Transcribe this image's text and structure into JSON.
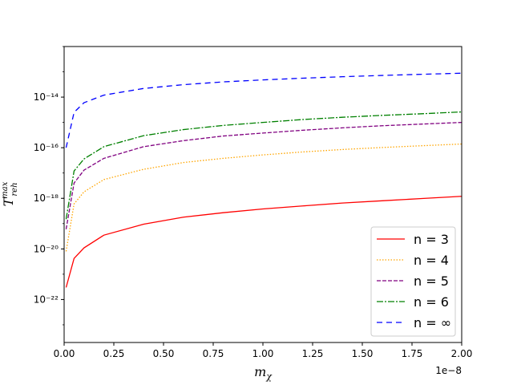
{
  "chart_data": {
    "type": "line",
    "title": "",
    "xlabel": "m_χ",
    "ylabel": "T_reh^max",
    "x_offset_label": "1e−8",
    "xlim": [
      0,
      2e-08
    ],
    "ylim": [
      2e-24,
      1e-12
    ],
    "yscale": "log",
    "x_ticks": [
      0,
      2.5e-09,
      5e-09,
      7.5e-09,
      1e-08,
      1.25e-08,
      1.5e-08,
      1.75e-08,
      2e-08
    ],
    "x_tick_labels": [
      "0.00",
      "0.25",
      "0.50",
      "0.75",
      "1.00",
      "1.25",
      "1.50",
      "1.75",
      "2.00"
    ],
    "y_ticks": [
      1e-22,
      1e-20,
      1e-18,
      1e-16,
      1e-14
    ],
    "y_tick_labels": [
      "10⁻²²",
      "10⁻²⁰",
      "10⁻¹⁸",
      "10⁻¹⁶",
      "10⁻¹⁴"
    ],
    "grid": false,
    "legend_position": "lower-right",
    "series": [
      {
        "name": "n = 3",
        "color": "#ff0000",
        "dash": "solid",
        "x": [
          1e-10,
          5e-10,
          1e-09,
          2e-09,
          4e-09,
          6e-09,
          8e-09,
          1e-08,
          1.2e-08,
          1.4e-08,
          1.6e-08,
          1.8e-08,
          2e-08
        ],
        "y": [
          3e-22,
          4.2e-21,
          1.1e-20,
          3.5e-20,
          9.5e-20,
          1.8e-19,
          2.7e-19,
          3.8e-19,
          5e-19,
          6.5e-19,
          8e-19,
          9.8e-19,
          1.2e-18
        ]
      },
      {
        "name": "n = 4",
        "color": "#ffa500",
        "dash": "dotted",
        "x": [
          1e-10,
          5e-10,
          1e-09,
          2e-09,
          4e-09,
          6e-09,
          8e-09,
          1e-08,
          1.2e-08,
          1.4e-08,
          1.6e-08,
          1.8e-08,
          2e-08
        ],
        "y": [
          8e-21,
          6e-19,
          1.8e-18,
          5.5e-18,
          1.4e-17,
          2.6e-17,
          3.8e-17,
          5.2e-17,
          6.8e-17,
          8.5e-17,
          1.02e-16,
          1.2e-16,
          1.4e-16
        ]
      },
      {
        "name": "n = 5",
        "color": "#800080",
        "dash": "dashed",
        "x": [
          1e-10,
          5e-10,
          1e-09,
          2e-09,
          4e-09,
          6e-09,
          8e-09,
          1e-08,
          1.2e-08,
          1.4e-08,
          1.6e-08,
          1.8e-08,
          2e-08
        ],
        "y": [
          6e-20,
          4e-18,
          1.3e-17,
          3.8e-17,
          1.1e-16,
          1.9e-16,
          2.9e-16,
          3.8e-16,
          4.9e-16,
          6.1e-16,
          7.4e-16,
          8.6e-16,
          1e-15
        ]
      },
      {
        "name": "n = 6",
        "color": "#008000",
        "dash": "dashdot",
        "x": [
          1e-10,
          5e-10,
          1e-09,
          2e-09,
          4e-09,
          6e-09,
          8e-09,
          1e-08,
          1.2e-08,
          1.4e-08,
          1.6e-08,
          1.8e-08,
          2e-08
        ],
        "y": [
          1.5e-19,
          1.2e-17,
          3.6e-17,
          1.1e-16,
          3e-16,
          5.2e-16,
          7.6e-16,
          1e-15,
          1.3e-15,
          1.6e-15,
          1.9e-15,
          2.2e-15,
          2.6e-15
        ]
      },
      {
        "name": "n = ∞",
        "color": "#0000ff",
        "dash": "longdash",
        "x": [
          1e-10,
          5e-10,
          1e-09,
          2e-09,
          4e-09,
          6e-09,
          8e-09,
          1e-08,
          1.2e-08,
          1.4e-08,
          1.6e-08,
          1.8e-08,
          2e-08
        ],
        "y": [
          1e-16,
          2.5e-15,
          6e-15,
          1.2e-14,
          2.2e-14,
          3.1e-14,
          4e-14,
          4.8e-14,
          5.6e-14,
          6.4e-14,
          7.2e-14,
          8e-14,
          8.8e-14
        ]
      }
    ]
  }
}
